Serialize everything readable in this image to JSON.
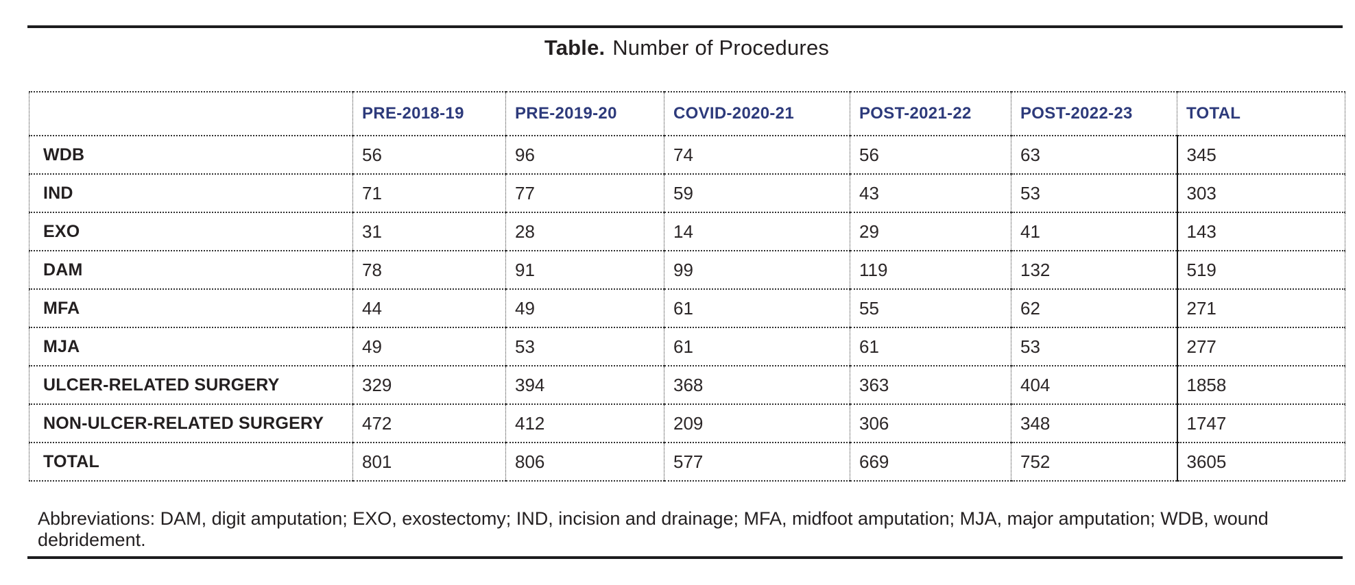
{
  "page": {
    "title_label": "Table.",
    "title_text": "Number of Procedures"
  },
  "table": {
    "columns": [
      "",
      "PRE-2018-19",
      "PRE-2019-20",
      "COVID-2020-21",
      "POST-2021-22",
      "POST-2022-23",
      "TOTAL"
    ],
    "rows": [
      {
        "label": "WDB",
        "values": [
          "56",
          "96",
          "74",
          "56",
          "63",
          "345"
        ]
      },
      {
        "label": "IND",
        "values": [
          "71",
          "77",
          "59",
          "43",
          "53",
          "303"
        ]
      },
      {
        "label": "EXO",
        "values": [
          "31",
          "28",
          "14",
          "29",
          "41",
          "143"
        ]
      },
      {
        "label": "DAM",
        "values": [
          "78",
          "91",
          "99",
          "119",
          "132",
          "519"
        ]
      },
      {
        "label": "MFA",
        "values": [
          "44",
          "49",
          "61",
          "55",
          "62",
          "271"
        ]
      },
      {
        "label": "MJA",
        "values": [
          "49",
          "53",
          "61",
          "61",
          "53",
          "277"
        ]
      },
      {
        "label": "ULCER-RELATED SURGERY",
        "values": [
          "329",
          "394",
          "368",
          "363",
          "404",
          "1858"
        ]
      },
      {
        "label": "NON-ULCER-RELATED SURGERY",
        "values": [
          "472",
          "412",
          "209",
          "306",
          "348",
          "1747"
        ]
      },
      {
        "label": "TOTAL",
        "values": [
          "801",
          "806",
          "577",
          "669",
          "752",
          "3605"
        ]
      }
    ]
  },
  "footnote": "Abbreviations: DAM, digit amputation; EXO, exostectomy; IND, incision and drainage; MFA, midfoot amputation; MJA, major amputation; WDB, wound debridement.",
  "colors": {
    "header_text": "#2d3a7b",
    "body_text": "#231f20",
    "rule": "#1c1c1e"
  }
}
